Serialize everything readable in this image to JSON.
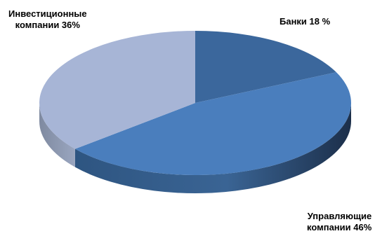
{
  "chart_data": {
    "type": "pie",
    "title": "",
    "categories": [
      "Банки",
      "Управляющие компании",
      "Инвестиционные компании"
    ],
    "values": [
      18,
      46,
      36
    ],
    "unit": "%",
    "colors": [
      "#3b679c",
      "#4a7ebd",
      "#a7b5d6"
    ],
    "labels": [
      {
        "lines": [
          "Банки 18 %"
        ]
      },
      {
        "lines": [
          "Управляющие",
          "компании 46%"
        ]
      },
      {
        "lines": [
          "Инвестиционные",
          "компании 36%"
        ]
      }
    ],
    "legend": "none",
    "style": "3d-perspective"
  }
}
